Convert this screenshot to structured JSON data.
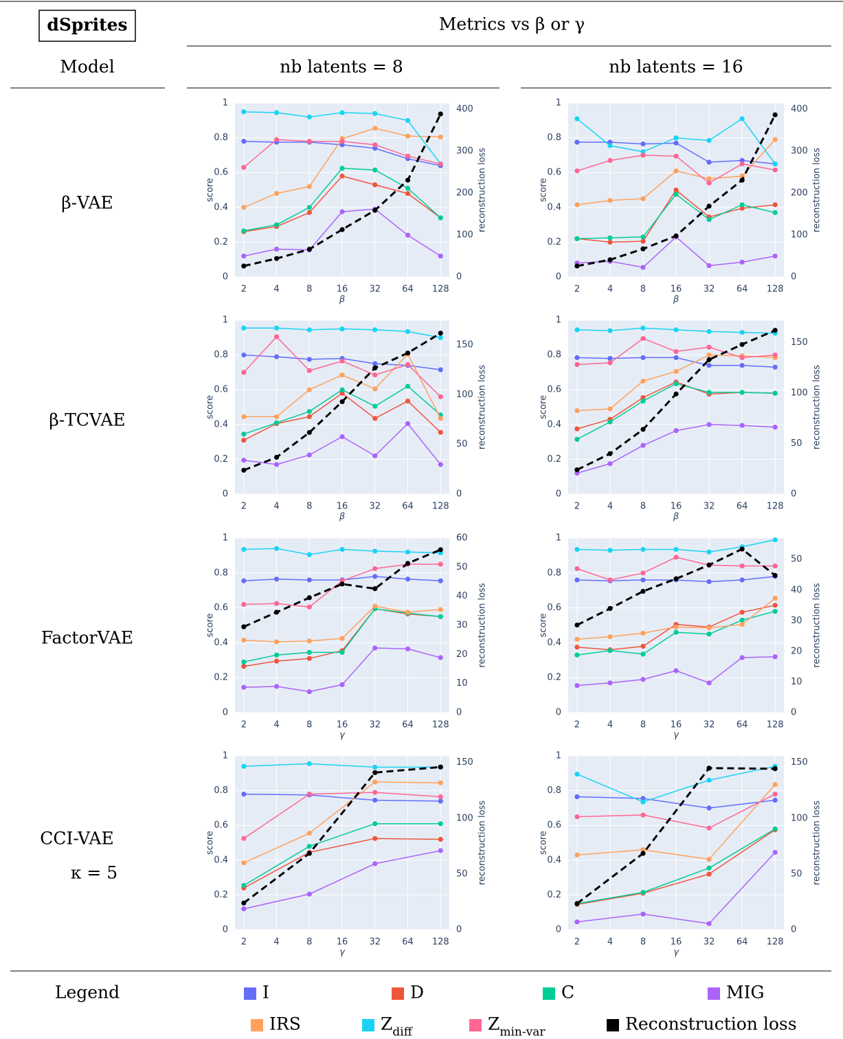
{
  "table": {
    "title": "dSprites",
    "subtitle": "Metrics vs β or γ",
    "model_header": "Model",
    "columns": [
      "nb latents = 8",
      "nb latents = 16"
    ],
    "rows": [
      {
        "label": "β-VAE"
      },
      {
        "label": "β-TCVAE"
      },
      {
        "label": "FactorVAE"
      },
      {
        "label": "CCI-VAE",
        "sublabel": "κ = 5"
      }
    ],
    "legend_header": "Legend"
  },
  "legend": {
    "items": [
      {
        "label": "I",
        "color": "#636efa"
      },
      {
        "label": "D",
        "color": "#ef553b"
      },
      {
        "label": "C",
        "color": "#00cc96"
      },
      {
        "label": "MIG",
        "color": "#ab63fa"
      },
      {
        "label": "IRS",
        "color": "#ffa15a"
      },
      {
        "label": "Z",
        "subscript": "diff",
        "color": "#19d3f3"
      },
      {
        "label": "Z",
        "subscript": "min-var",
        "color": "#ff6692"
      },
      {
        "label": "Reconstruction loss",
        "color": "#000000"
      }
    ]
  },
  "chart_data": [
    {
      "type": "line",
      "x": [
        2,
        4,
        8,
        16,
        32,
        64,
        128
      ],
      "xlog": true,
      "xlim": [
        1.66,
        154
      ],
      "xticks": [
        2,
        4,
        8,
        16,
        32,
        64,
        128
      ],
      "xlabel": "β",
      "ylabel": "score",
      "ylim": [
        0,
        1
      ],
      "yticks": [
        0,
        0.2,
        0.4,
        0.6,
        0.8,
        1
      ],
      "y2label": "reconstruction loss",
      "y2lim": [
        0,
        415
      ],
      "y2ticks": [
        0,
        100,
        200,
        300,
        400
      ],
      "grid": true,
      "series": [
        {
          "values": [
            0.78,
            0.775,
            0.775,
            0.76,
            0.74,
            0.68,
            0.64
          ]
        },
        {
          "values": [
            0.26,
            0.29,
            0.37,
            0.58,
            0.53,
            0.48,
            0.34
          ]
        },
        {
          "values": [
            0.265,
            0.3,
            0.4,
            0.625,
            0.615,
            0.51,
            0.34
          ]
        },
        {
          "values": [
            0.12,
            0.16,
            0.155,
            0.375,
            0.39,
            0.24,
            0.12
          ]
        },
        {
          "values": [
            0.4,
            0.48,
            0.52,
            0.795,
            0.855,
            0.81,
            0.805
          ]
        },
        {
          "values": [
            0.95,
            0.945,
            0.92,
            0.945,
            0.94,
            0.9,
            0.65
          ]
        },
        {
          "values": [
            0.63,
            0.79,
            0.78,
            0.78,
            0.76,
            0.695,
            0.65
          ]
        },
        {
          "values": [
            26,
            44,
            66,
            113,
            159,
            231,
            389
          ],
          "axis": "y2",
          "dash": true
        }
      ]
    },
    {
      "type": "line",
      "x": [
        2,
        4,
        8,
        16,
        32,
        64,
        128
      ],
      "xlog": true,
      "xlim": [
        1.66,
        154
      ],
      "xticks": [
        2,
        4,
        8,
        16,
        32,
        64,
        128
      ],
      "xlabel": "β",
      "ylabel": "score",
      "ylim": [
        0,
        1
      ],
      "yticks": [
        0,
        0.2,
        0.4,
        0.6,
        0.8,
        1
      ],
      "y2label": "reconstruction loss",
      "y2lim": [
        0,
        415
      ],
      "y2ticks": [
        0,
        100,
        200,
        300,
        400
      ],
      "grid": true,
      "series": [
        {
          "values": [
            0.775,
            0.775,
            0.765,
            0.77,
            0.66,
            0.67,
            0.65
          ]
        },
        {
          "values": [
            0.22,
            0.2,
            0.205,
            0.5,
            0.345,
            0.395,
            0.415
          ]
        },
        {
          "values": [
            0.22,
            0.225,
            0.23,
            0.475,
            0.33,
            0.415,
            0.37
          ]
        },
        {
          "values": [
            0.08,
            0.09,
            0.055,
            0.23,
            0.065,
            0.085,
            0.12
          ]
        },
        {
          "values": [
            0.415,
            0.44,
            0.45,
            0.61,
            0.565,
            0.58,
            0.79
          ]
        },
        {
          "values": [
            0.91,
            0.755,
            0.72,
            0.8,
            0.785,
            0.91,
            0.65
          ]
        },
        {
          "values": [
            0.61,
            0.67,
            0.7,
            0.695,
            0.54,
            0.65,
            0.615
          ]
        },
        {
          "values": [
            26,
            41,
            67,
            98,
            169,
            231,
            387
          ],
          "axis": "y2",
          "dash": true
        }
      ]
    },
    {
      "type": "line",
      "x": [
        2,
        4,
        8,
        16,
        32,
        64,
        128
      ],
      "xlog": true,
      "xlim": [
        1.66,
        154
      ],
      "xticks": [
        2,
        4,
        8,
        16,
        32,
        64,
        128
      ],
      "xlabel": "β",
      "ylabel": "score",
      "ylim": [
        0,
        1
      ],
      "yticks": [
        0,
        0.2,
        0.4,
        0.6,
        0.8,
        1
      ],
      "y2label": "reconstruction loss",
      "y2lim": [
        0,
        175
      ],
      "y2ticks": [
        0,
        50,
        100,
        150
      ],
      "grid": true,
      "series": [
        {
          "values": [
            0.8,
            0.79,
            0.775,
            0.78,
            0.75,
            0.74,
            0.715
          ]
        },
        {
          "values": [
            0.31,
            0.405,
            0.445,
            0.58,
            0.435,
            0.535,
            0.355
          ]
        },
        {
          "values": [
            0.345,
            0.41,
            0.475,
            0.6,
            0.505,
            0.62,
            0.455
          ]
        },
        {
          "values": [
            0.195,
            0.17,
            0.225,
            0.33,
            0.22,
            0.405,
            0.17
          ]
        },
        {
          "values": [
            0.445,
            0.445,
            0.6,
            0.685,
            0.605,
            0.805,
            0.435
          ]
        },
        {
          "values": [
            0.955,
            0.955,
            0.945,
            0.95,
            0.945,
            0.935,
            0.9
          ]
        },
        {
          "values": [
            0.7,
            0.905,
            0.71,
            0.765,
            0.685,
            0.745,
            0.56
          ]
        },
        {
          "values": [
            24,
            37,
            62,
            93,
            127,
            142,
            162
          ],
          "axis": "y2",
          "dash": true
        }
      ]
    },
    {
      "type": "line",
      "x": [
        2,
        4,
        8,
        16,
        32,
        64,
        128
      ],
      "xlog": true,
      "xlim": [
        1.66,
        154
      ],
      "xticks": [
        2,
        4,
        8,
        16,
        32,
        64,
        128
      ],
      "xlabel": "β",
      "ylabel": "score",
      "ylim": [
        0,
        1
      ],
      "yticks": [
        0,
        0.2,
        0.4,
        0.6,
        0.8,
        1
      ],
      "y2label": "reconstruction loss",
      "y2lim": [
        0,
        172
      ],
      "y2ticks": [
        0,
        50,
        100,
        150
      ],
      "grid": true,
      "series": [
        {
          "values": [
            0.785,
            0.78,
            0.785,
            0.785,
            0.74,
            0.74,
            0.73
          ]
        },
        {
          "values": [
            0.375,
            0.43,
            0.555,
            0.645,
            0.575,
            0.585,
            0.58
          ]
        },
        {
          "values": [
            0.315,
            0.415,
            0.535,
            0.635,
            0.585,
            0.585,
            0.58
          ]
        },
        {
          "values": [
            0.12,
            0.175,
            0.28,
            0.365,
            0.4,
            0.395,
            0.385
          ]
        },
        {
          "values": [
            0.48,
            0.49,
            0.65,
            0.705,
            0.8,
            0.795,
            0.785
          ]
        },
        {
          "values": [
            0.945,
            0.94,
            0.955,
            0.945,
            0.935,
            0.93,
            0.925
          ]
        },
        {
          "values": [
            0.745,
            0.755,
            0.895,
            0.82,
            0.845,
            0.785,
            0.8
          ]
        },
        {
          "values": [
            24,
            40,
            64,
            99,
            133,
            148,
            162
          ],
          "axis": "y2",
          "dash": true
        }
      ]
    },
    {
      "type": "line",
      "x": [
        2,
        4,
        8,
        16,
        32,
        64,
        128
      ],
      "xlog": true,
      "xlim": [
        1.66,
        154
      ],
      "xticks": [
        2,
        4,
        8,
        16,
        32,
        64,
        128
      ],
      "xlabel": "γ",
      "ylabel": "score",
      "ylim": [
        0,
        1
      ],
      "yticks": [
        0,
        0.2,
        0.4,
        0.6,
        0.8,
        1
      ],
      "y2label": "reconstruction loss",
      "y2lim": [
        0,
        60
      ],
      "y2ticks": [
        0,
        10,
        20,
        30,
        40,
        50,
        60
      ],
      "grid": true,
      "series": [
        {
          "values": [
            0.755,
            0.765,
            0.76,
            0.76,
            0.78,
            0.765,
            0.755
          ]
        },
        {
          "values": [
            0.265,
            0.295,
            0.31,
            0.355,
            0.595,
            0.565,
            0.55
          ]
        },
        {
          "values": [
            0.29,
            0.33,
            0.345,
            0.345,
            0.595,
            0.57,
            0.55
          ]
        },
        {
          "values": [
            0.145,
            0.15,
            0.12,
            0.16,
            0.37,
            0.365,
            0.315
          ]
        },
        {
          "values": [
            0.415,
            0.405,
            0.41,
            0.425,
            0.61,
            0.575,
            0.59
          ]
        },
        {
          "values": [
            0.935,
            0.94,
            0.905,
            0.935,
            0.925,
            0.92,
            0.915
          ]
        },
        {
          "values": [
            0.62,
            0.625,
            0.605,
            0.755,
            0.825,
            0.85,
            0.85
          ]
        },
        {
          "values": [
            29.5,
            34.5,
            39.5,
            44.2,
            42.6,
            51.3,
            56
          ],
          "axis": "y2",
          "dash": true
        }
      ]
    },
    {
      "type": "line",
      "x": [
        2,
        4,
        8,
        16,
        32,
        64,
        128
      ],
      "xlog": true,
      "xlim": [
        1.66,
        154
      ],
      "xticks": [
        2,
        4,
        8,
        16,
        32,
        64,
        128
      ],
      "xlabel": "γ",
      "ylabel": "score",
      "ylim": [
        0,
        1
      ],
      "yticks": [
        0,
        0.2,
        0.4,
        0.6,
        0.8,
        1
      ],
      "y2label": "reconstruction loss",
      "y2lim": [
        0,
        57
      ],
      "y2ticks": [
        0,
        10,
        20,
        30,
        40,
        50
      ],
      "grid": true,
      "series": [
        {
          "values": [
            0.76,
            0.755,
            0.76,
            0.76,
            0.75,
            0.76,
            0.78
          ]
        },
        {
          "values": [
            0.375,
            0.36,
            0.38,
            0.505,
            0.49,
            0.575,
            0.615
          ]
        },
        {
          "values": [
            0.33,
            0.355,
            0.335,
            0.46,
            0.45,
            0.53,
            0.58
          ]
        },
        {
          "values": [
            0.155,
            0.17,
            0.19,
            0.24,
            0.17,
            0.315,
            0.32
          ]
        },
        {
          "values": [
            0.42,
            0.435,
            0.455,
            0.49,
            0.485,
            0.505,
            0.655
          ]
        },
        {
          "values": [
            0.935,
            0.93,
            0.935,
            0.935,
            0.92,
            0.95,
            0.99
          ]
        },
        {
          "values": [
            0.825,
            0.76,
            0.8,
            0.89,
            0.845,
            0.84,
            0.84
          ]
        },
        {
          "values": [
            28.6,
            34,
            39.6,
            43.7,
            48.2,
            53.4,
            44.8
          ],
          "axis": "y2",
          "dash": true
        }
      ]
    },
    {
      "type": "line",
      "x": [
        2,
        8,
        32,
        128
      ],
      "xlog": true,
      "xlim": [
        1.66,
        154
      ],
      "xticks": [
        2,
        4,
        8,
        16,
        32,
        64,
        128
      ],
      "xlabel": "γ",
      "ylabel": "score",
      "ylim": [
        0,
        1
      ],
      "yticks": [
        0,
        0.2,
        0.4,
        0.6,
        0.8,
        1
      ],
      "y2label": "reconstruction loss",
      "y2lim": [
        0,
        156
      ],
      "y2ticks": [
        0,
        50,
        100,
        150
      ],
      "grid": true,
      "series": [
        {
          "values": [
            0.78,
            0.775,
            0.745,
            0.74
          ]
        },
        {
          "values": [
            0.24,
            0.445,
            0.525,
            0.52
          ]
        },
        {
          "values": [
            0.255,
            0.48,
            0.61,
            0.61
          ]
        },
        {
          "values": [
            0.12,
            0.205,
            0.38,
            0.455
          ]
        },
        {
          "values": [
            0.385,
            0.555,
            0.85,
            0.845
          ]
        },
        {
          "values": [
            0.94,
            0.955,
            0.935,
            0.935
          ]
        },
        {
          "values": [
            0.525,
            0.78,
            0.79,
            0.765
          ]
        },
        {
          "values": [
            24,
            68.5,
            141,
            146
          ],
          "axis": "y2",
          "dash": true
        }
      ]
    },
    {
      "type": "line",
      "x": [
        2,
        8,
        32,
        128
      ],
      "xlog": true,
      "xlim": [
        1.66,
        154
      ],
      "xticks": [
        2,
        4,
        8,
        16,
        32,
        64,
        128
      ],
      "xlabel": "γ",
      "ylabel": "score",
      "ylim": [
        0,
        1
      ],
      "yticks": [
        0,
        0.2,
        0.4,
        0.6,
        0.8,
        1
      ],
      "y2label": "reconstruction loss",
      "y2lim": [
        0,
        156
      ],
      "y2ticks": [
        0,
        50,
        100,
        150
      ],
      "grid": true,
      "series": [
        {
          "values": [
            0.765,
            0.755,
            0.7,
            0.745
          ]
        },
        {
          "values": [
            0.145,
            0.21,
            0.32,
            0.575
          ]
        },
        {
          "values": [
            0.15,
            0.215,
            0.355,
            0.58
          ]
        },
        {
          "values": [
            0.045,
            0.09,
            0.035,
            0.445
          ]
        },
        {
          "values": [
            0.43,
            0.46,
            0.405,
            0.835
          ]
        },
        {
          "values": [
            0.895,
            0.735,
            0.86,
            0.94
          ]
        },
        {
          "values": [
            0.65,
            0.66,
            0.585,
            0.78
          ]
        },
        {
          "values": [
            23.5,
            68.5,
            145,
            144.5
          ],
          "axis": "y2",
          "dash": true
        }
      ]
    }
  ]
}
